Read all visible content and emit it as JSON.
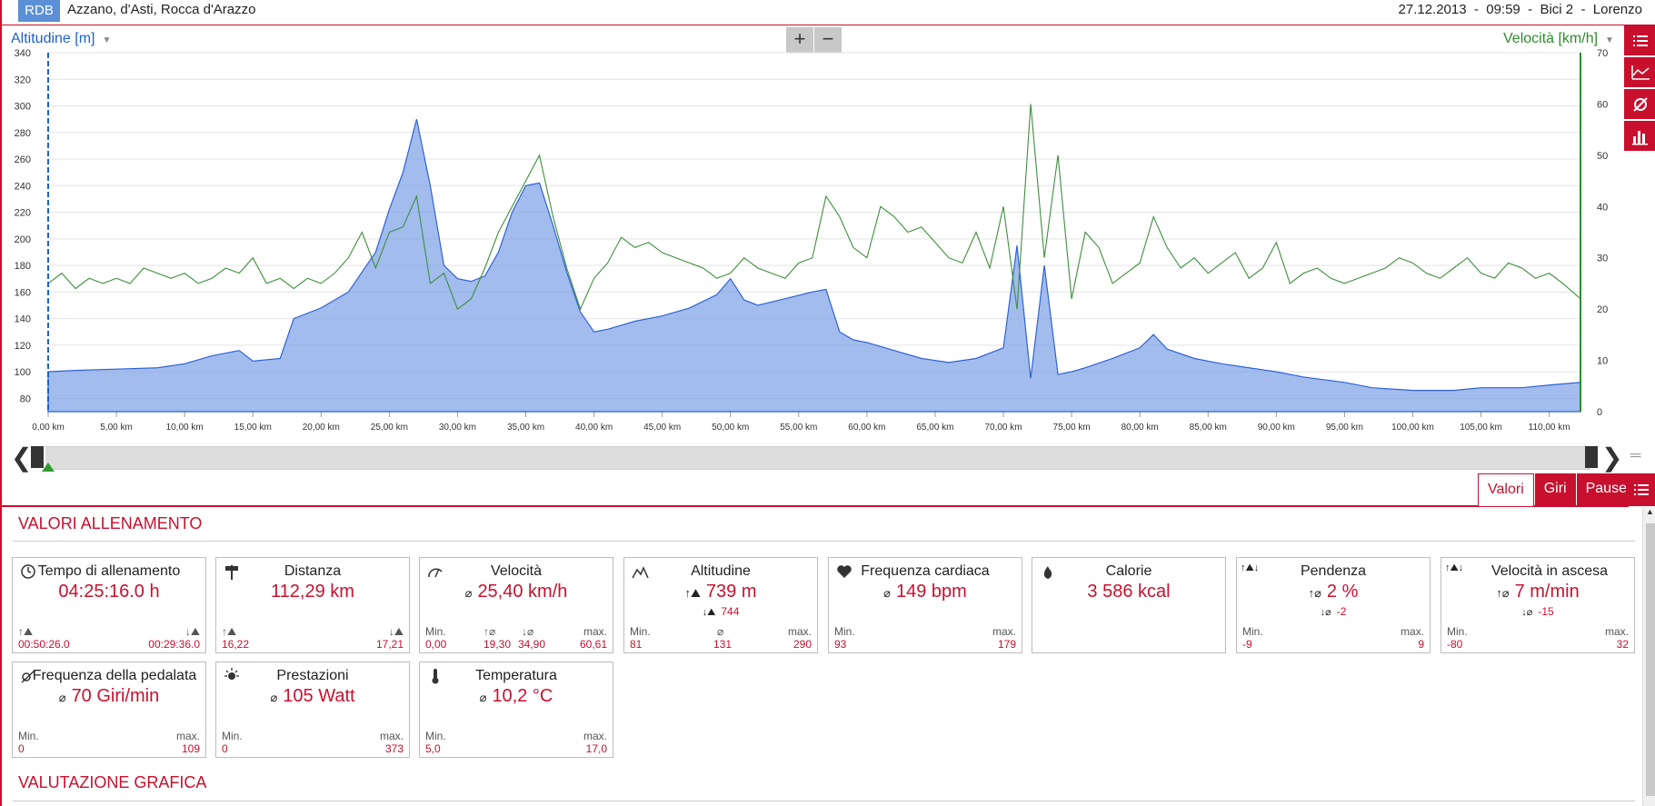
{
  "header": {
    "logo": "RDB",
    "location": "Azzano, d'Asti, Rocca d'Arazzo",
    "meta": "27.12.2013  -  09:59  -  Bici 2  -  Lorenzo"
  },
  "chart": {
    "left_axis_label": "Altitudine [m]",
    "right_axis_label": "Velocità [km/h]",
    "zoom_in": "+",
    "zoom_out": "−",
    "left_ticks": [
      "340",
      "320",
      "300",
      "280",
      "260",
      "240",
      "220",
      "200",
      "180",
      "160",
      "140",
      "120",
      "100",
      "80"
    ],
    "right_ticks": [
      "70",
      "60",
      "50",
      "40",
      "30",
      "20",
      "10",
      "0"
    ],
    "x_ticks": [
      "0,00 km",
      "5,00 km",
      "10,00 km",
      "15,00 km",
      "20,00 km",
      "25,00 km",
      "30,00 km",
      "35,00 km",
      "40,00 km",
      "45,00 km",
      "50,00 km",
      "55,00 km",
      "60,00 km",
      "65,00 km",
      "70,00 km",
      "75,00 km",
      "80,00 km",
      "85,00 km",
      "90,00 km",
      "95,00 km",
      "100,00 km",
      "105,00 km",
      "110,00 km"
    ]
  },
  "chart_data": {
    "type": "area",
    "xlabel": "",
    "ylabel": "Altitudine [m]",
    "y2label": "Velocità [km/h]",
    "xlim": [
      0,
      112.29
    ],
    "ylim": [
      70,
      340
    ],
    "y2lim": [
      0,
      70
    ],
    "series": [
      {
        "name": "Altitudine [m]",
        "axis": "left",
        "color": "#7b9fe6",
        "x": [
          0,
          2,
          5,
          8,
          10,
          12,
          14,
          15,
          17,
          18,
          20,
          22,
          24,
          25,
          26,
          27,
          28,
          29,
          30,
          31,
          32,
          33,
          34,
          35,
          36,
          37,
          38,
          39,
          40,
          41,
          42,
          43,
          44,
          45,
          47,
          49,
          50,
          51,
          52,
          54,
          56,
          57,
          58,
          59,
          60,
          62,
          64,
          66,
          68,
          70,
          71,
          72,
          73,
          74,
          75,
          76,
          78,
          80,
          81,
          82,
          84,
          86,
          88,
          90,
          92,
          95,
          97,
          100,
          103,
          105,
          108,
          110,
          112.29
        ],
        "values": [
          100,
          101,
          102,
          103,
          106,
          112,
          116,
          108,
          110,
          140,
          148,
          160,
          190,
          222,
          250,
          290,
          240,
          180,
          170,
          168,
          172,
          190,
          220,
          240,
          242,
          210,
          175,
          145,
          130,
          132,
          135,
          138,
          140,
          142,
          148,
          158,
          170,
          154,
          150,
          155,
          160,
          162,
          130,
          124,
          122,
          116,
          110,
          107,
          110,
          118,
          195,
          95,
          180,
          98,
          100,
          103,
          110,
          118,
          128,
          117,
          110,
          106,
          103,
          100,
          96,
          92,
          88,
          86,
          86,
          88,
          88,
          90,
          92
        ]
      },
      {
        "name": "Velocità [km/h]",
        "axis": "right",
        "color": "#3e8e3e",
        "x": [
          0,
          1,
          2,
          3,
          4,
          5,
          6,
          7,
          8,
          9,
          10,
          11,
          12,
          13,
          14,
          15,
          16,
          17,
          18,
          19,
          20,
          21,
          22,
          23,
          24,
          25,
          26,
          27,
          28,
          29,
          30,
          31,
          32,
          33,
          34,
          35,
          36,
          37,
          38,
          39,
          40,
          41,
          42,
          43,
          44,
          45,
          46,
          47,
          48,
          49,
          50,
          51,
          52,
          53,
          54,
          55,
          56,
          57,
          58,
          59,
          60,
          61,
          62,
          63,
          64,
          65,
          66,
          67,
          68,
          69,
          70,
          71,
          72,
          73,
          74,
          75,
          76,
          77,
          78,
          79,
          80,
          81,
          82,
          83,
          84,
          85,
          86,
          87,
          88,
          89,
          90,
          91,
          92,
          93,
          94,
          95,
          96,
          97,
          98,
          99,
          100,
          101,
          102,
          103,
          104,
          105,
          106,
          107,
          108,
          109,
          110,
          111,
          112.29
        ],
        "values": [
          25,
          27,
          24,
          26,
          25,
          26,
          25,
          28,
          27,
          26,
          27,
          25,
          26,
          28,
          27,
          30,
          25,
          26,
          24,
          26,
          25,
          27,
          30,
          35,
          28,
          35,
          36,
          42,
          25,
          27,
          20,
          22,
          28,
          35,
          40,
          45,
          50,
          38,
          28,
          20,
          26,
          29,
          34,
          32,
          33,
          31,
          30,
          29,
          28,
          26,
          27,
          30,
          28,
          27,
          26,
          29,
          30,
          42,
          38,
          32,
          30,
          40,
          38,
          35,
          36,
          33,
          30,
          29,
          35,
          28,
          40,
          20,
          60,
          30,
          50,
          22,
          35,
          32,
          25,
          27,
          29,
          38,
          32,
          28,
          30,
          27,
          29,
          31,
          26,
          28,
          33,
          25,
          27,
          28,
          26,
          25,
          26,
          27,
          28,
          30,
          29,
          27,
          26,
          28,
          30,
          27,
          26,
          29,
          28,
          26,
          27,
          25,
          22
        ]
      }
    ]
  },
  "tabs": [
    "Valori",
    "Giri",
    "Pause"
  ],
  "section1": "VALORI ALLENAMENTO",
  "section2": "VALUTAZIONE GRAFICA",
  "cards": {
    "tempo": {
      "title": "Tempo di allenamento",
      "value": "04:25:16.0 h",
      "l": "00:50:26.0",
      "r": "00:29:36.0"
    },
    "distanza": {
      "title": "Distanza",
      "value": "112,29 km",
      "l": "16,22",
      "r": "17,21"
    },
    "velocita": {
      "title": "Velocità",
      "value": "25,40 km/h",
      "min_lab": "Min.",
      "max_lab": "max.",
      "min": "0,00",
      "up": "19,30",
      "down": "34,90",
      "max": "60,61"
    },
    "altitudine": {
      "title": "Altitudine",
      "value": "739 m",
      "sub": "744",
      "min_lab": "Min.",
      "max_lab": "max.",
      "min": "81",
      "avg": "131",
      "max": "290"
    },
    "frequenza": {
      "title": "Frequenza cardiaca",
      "value": "149 bpm",
      "min_lab": "Min.",
      "max_lab": "max.",
      "min": "93",
      "max": "179"
    },
    "calorie": {
      "title": "Calorie",
      "value": "3 586 kcal"
    },
    "pendenza": {
      "title": "Pendenza",
      "value": "2 %",
      "sub": "-2",
      "min_lab": "Min.",
      "max_lab": "max.",
      "min": "-9",
      "max": "9"
    },
    "ascesa": {
      "title": "Velocità in ascesa",
      "value": "7 m/min",
      "sub": "-15",
      "min_lab": "Min.",
      "max_lab": "max.",
      "min": "-80",
      "max": "32"
    },
    "pedalata": {
      "title": "Frequenza della pedalata",
      "value": "70 Giri/min",
      "min_lab": "Min.",
      "max_lab": "max.",
      "min": "0",
      "max": "109"
    },
    "prestazioni": {
      "title": "Prestazioni",
      "value": "105 Watt",
      "min_lab": "Min.",
      "max_lab": "max.",
      "min": "0",
      "max": "373"
    },
    "temperatura": {
      "title": "Temperatura",
      "value": "10,2 °C",
      "min_lab": "Min.",
      "max_lab": "max.",
      "min": "5,0",
      "max": "17,0"
    }
  }
}
